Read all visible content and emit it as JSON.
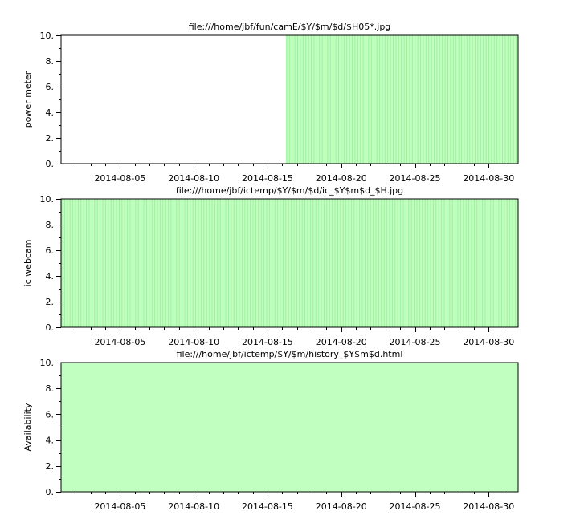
{
  "chart_data": [
    {
      "type": "bar",
      "title": "file:///home/jbf/fun/camE/$Y/$m/$d/$H05*.jpg",
      "ylabel": "power meter",
      "xlabel": "",
      "xlim": [
        "2014-08-01",
        "2014-09-01"
      ],
      "ylim": [
        0,
        10
      ],
      "yticks": [
        "0.",
        "2.",
        "4.",
        "6.",
        "8.",
        "10."
      ],
      "xticks": [
        "2014-08-05",
        "2014-08-10",
        "2014-08-15",
        "2014-08-20",
        "2014-08-25",
        "2014-08-30"
      ],
      "fill_color": "#c0ffc0",
      "line_color": "#a0f0a0",
      "coverage": [
        {
          "start": "2014-08-16 06:00",
          "end": "2014-09-01 00:00",
          "value": 10
        }
      ],
      "bar_style": "hourly"
    },
    {
      "type": "bar",
      "title": "file:///home/jbf/ictemp/$Y/$m/$d/ic_$Y$m$d_$H.jpg",
      "ylabel": "ic webcam",
      "xlabel": "",
      "xlim": [
        "2014-08-01",
        "2014-09-01"
      ],
      "ylim": [
        0,
        10
      ],
      "yticks": [
        "0.",
        "2.",
        "4.",
        "6.",
        "8.",
        "10."
      ],
      "xticks": [
        "2014-08-05",
        "2014-08-10",
        "2014-08-15",
        "2014-08-20",
        "2014-08-25",
        "2014-08-30"
      ],
      "fill_color": "#c0ffc0",
      "line_color": "#a0f0a0",
      "coverage": [
        {
          "start": "2014-08-01 00:00",
          "end": "2014-09-01 00:00",
          "value": 10
        }
      ],
      "bar_style": "hourly"
    },
    {
      "type": "bar",
      "title": "file:///home/jbf/ictemp/$Y/$m/history_$Y$m$d.html",
      "ylabel": "Availability",
      "xlabel": "",
      "xlim": [
        "2014-08-01",
        "2014-09-01"
      ],
      "ylim": [
        0,
        10
      ],
      "yticks": [
        "0.",
        "2.",
        "4.",
        "6.",
        "8.",
        "10."
      ],
      "xticks": [
        "2014-08-05",
        "2014-08-10",
        "2014-08-15",
        "2014-08-20",
        "2014-08-25",
        "2014-08-30"
      ],
      "fill_color": "#c0ffc0",
      "line_color": "#c0ffc0",
      "coverage": [
        {
          "start": "2014-08-01 00:00",
          "end": "2014-09-01 00:00",
          "value": 10
        }
      ],
      "bar_style": "daily"
    }
  ]
}
